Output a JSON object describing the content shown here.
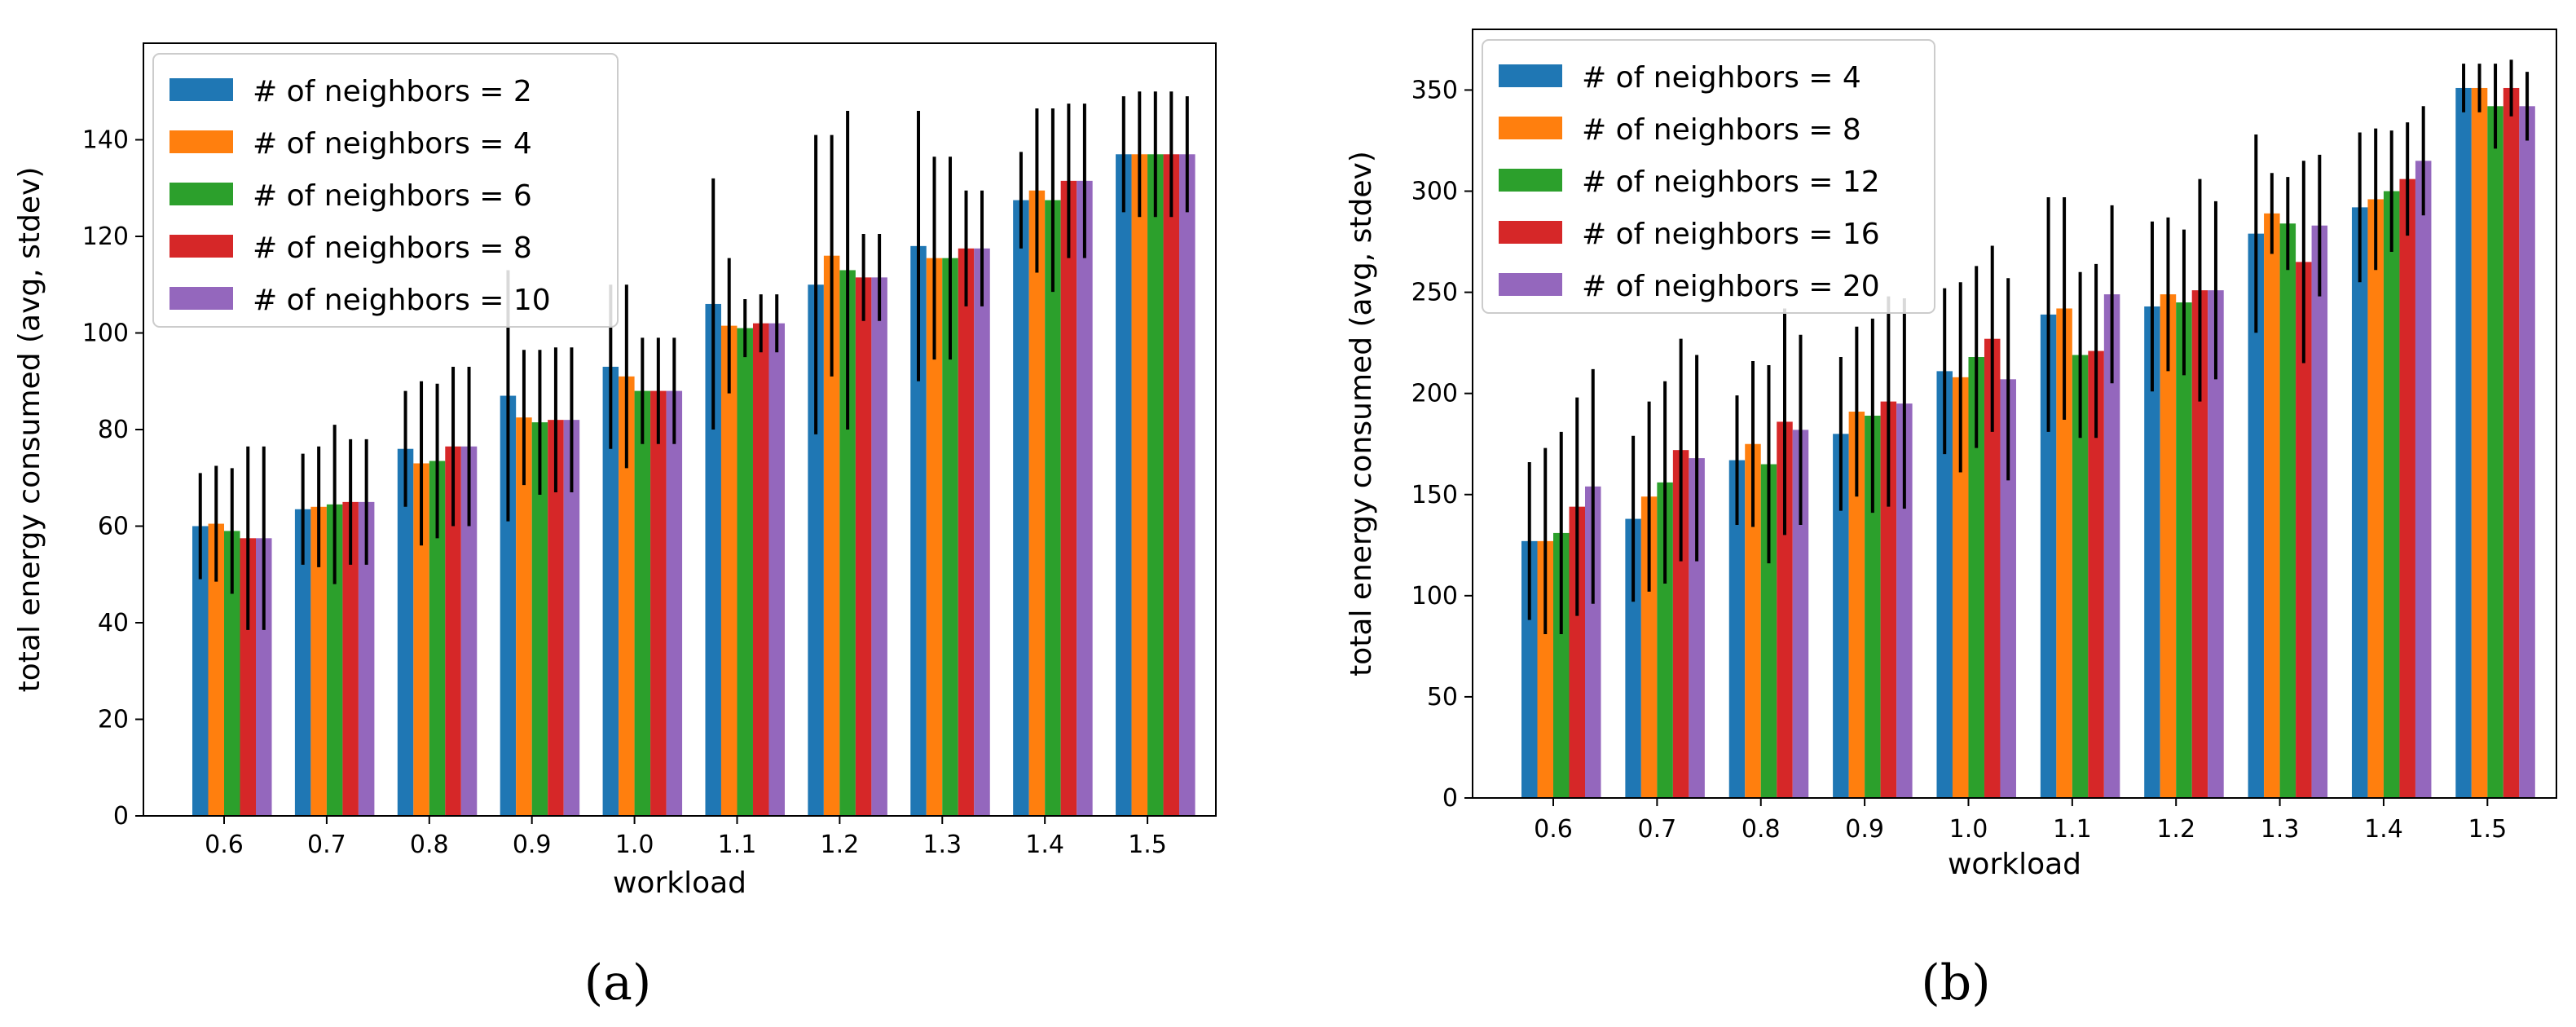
{
  "chart_data": [
    {
      "type": "bar",
      "panel_label": "(a)",
      "xlabel": "workload",
      "ylabel": "total energy consumed (avg, stdev)",
      "categories": [
        "0.6",
        "0.7",
        "0.8",
        "0.9",
        "1.0",
        "1.1",
        "1.2",
        "1.3",
        "1.4",
        "1.5"
      ],
      "ylim": [
        0,
        160
      ],
      "yticks": [
        "0",
        "20",
        "40",
        "60",
        "80",
        "100",
        "120",
        "140"
      ],
      "legend_position": "top-left",
      "series": [
        {
          "name": "# of neighbors = 2",
          "color": "#1f77b4",
          "values": [
            60,
            63.5,
            76,
            87,
            93,
            106,
            110,
            118,
            127.5,
            137
          ],
          "errors": [
            11,
            11.5,
            12,
            26,
            17,
            26,
            31,
            28,
            10,
            12
          ]
        },
        {
          "name": "# of neighbors = 4",
          "color": "#ff7f0e",
          "values": [
            60.5,
            64,
            73,
            82.5,
            91,
            101.5,
            116,
            115.5,
            129.5,
            137
          ],
          "errors": [
            12,
            12.5,
            17,
            14,
            19,
            14,
            25,
            21,
            17,
            13
          ]
        },
        {
          "name": "# of neighbors = 6",
          "color": "#2ca02c",
          "values": [
            59,
            64.5,
            73.5,
            81.5,
            88,
            101,
            113,
            115.5,
            127.5,
            137
          ],
          "errors": [
            13,
            16.5,
            16,
            15,
            11,
            6,
            33,
            21,
            19,
            13
          ]
        },
        {
          "name": "# of neighbors = 8",
          "color": "#d62728",
          "values": [
            57.5,
            65,
            76.5,
            82,
            88,
            102,
            111.5,
            117.5,
            131.5,
            137
          ],
          "errors": [
            19,
            13,
            16.5,
            15,
            11,
            6,
            9,
            12,
            16,
            13
          ]
        },
        {
          "name": "# of neighbors = 10",
          "color": "#9467bd",
          "values": [
            57.5,
            65,
            76.5,
            82,
            88,
            102,
            111.5,
            117.5,
            131.5,
            137
          ],
          "errors": [
            19,
            13,
            16.5,
            15,
            11,
            6,
            9,
            12,
            16,
            12
          ]
        }
      ]
    },
    {
      "type": "bar",
      "panel_label": "(b)",
      "xlabel": "workload",
      "ylabel": "total energy consumed (avg, stdev)",
      "categories": [
        "0.6",
        "0.7",
        "0.8",
        "0.9",
        "1.0",
        "1.1",
        "1.2",
        "1.3",
        "1.4",
        "1.5"
      ],
      "ylim": [
        0,
        380
      ],
      "yticks": [
        "0",
        "50",
        "100",
        "150",
        "200",
        "250",
        "300",
        "350"
      ],
      "legend_position": "top-left",
      "series": [
        {
          "name": "# of neighbors = 4",
          "color": "#1f77b4",
          "values": [
            127,
            138,
            167,
            180,
            211,
            239,
            243,
            279,
            292,
            351
          ],
          "errors": [
            39,
            41,
            32,
            38,
            41,
            58,
            42,
            49,
            37,
            12
          ]
        },
        {
          "name": "# of neighbors = 8",
          "color": "#ff7f0e",
          "values": [
            127,
            149,
            175,
            191,
            208,
            242,
            249,
            289,
            296,
            351
          ],
          "errors": [
            46,
            47,
            41,
            42,
            47,
            55,
            38,
            20,
            35,
            12
          ]
        },
        {
          "name": "# of neighbors = 12",
          "color": "#2ca02c",
          "values": [
            131,
            156,
            165,
            189,
            218,
            219,
            245,
            284,
            300,
            342
          ],
          "errors": [
            50,
            50,
            49,
            48,
            45,
            41,
            36,
            23,
            30,
            21
          ]
        },
        {
          "name": "# of neighbors = 16",
          "color": "#d62728",
          "values": [
            144,
            172,
            186,
            196,
            227,
            221,
            251,
            265,
            306,
            351
          ],
          "errors": [
            54,
            55,
            56,
            52,
            46,
            43,
            55,
            50,
            28,
            14
          ]
        },
        {
          "name": "# of neighbors = 20",
          "color": "#9467bd",
          "values": [
            154,
            168,
            182,
            195,
            207,
            249,
            251,
            283,
            315,
            342
          ],
          "errors": [
            58,
            51,
            47,
            52,
            50,
            44,
            44,
            35,
            27,
            17
          ]
        }
      ]
    }
  ]
}
